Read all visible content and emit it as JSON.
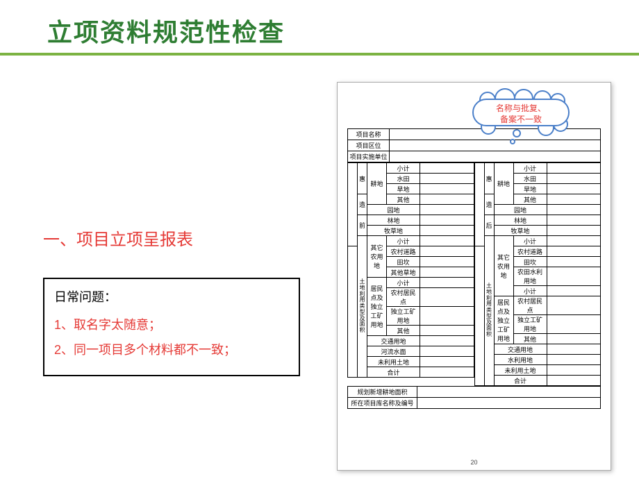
{
  "title": "立项资料规范性检查",
  "cloud_text_l1": "名称与批复、",
  "cloud_text_l2": "备案不一致",
  "section_heading": "一、项目立项呈报表",
  "issues": {
    "title": "日常问题：",
    "line1": "1、取名字太随意；",
    "line2": "2、同一项目多个材料都不一致；"
  },
  "form": {
    "hdr1": "项目名称",
    "hdr2": "项目区位",
    "hdr3": "项目实施单位",
    "side_top_l1": "惠",
    "side_top_l2": "造",
    "side_top_l3": "前",
    "side_top_r1": "惠",
    "side_top_r2": "造",
    "side_top_r3": "后",
    "side_lbl_l": "土地利用类型及面积",
    "side_lbl_r": "土地利用类型及面积",
    "gd": "耕地",
    "xj": "小计",
    "st": "水田",
    "hd": "旱地",
    "qt": "其他",
    "yd": "园地",
    "ld": "林地",
    "mcd": "牧草地",
    "qtnyd": "其它农用地",
    "ncdl": "农村道路",
    "tk": "田坎",
    "qtcd": "其他草地",
    "ntsl": "农田水利用地",
    "jmdgk": "居民点及独立工矿用地",
    "ncjmd": "农村居民点",
    "dlgkyd": "独立工矿用地",
    "jtyd": "交通用地",
    "hlsm": "河流水面",
    "slyd": "水利用地",
    "wlytd": "未利用土地",
    "hj": "合计",
    "footer1": "规划新增耕地面积",
    "footer2": "所在项目库名称及编号",
    "page_num": "20"
  },
  "colors": {
    "background": "#174a5e",
    "title_green": "#2e7d32",
    "accent_green": "#7cb342",
    "red": "#e53935",
    "cloud_border": "#4a7fc9"
  }
}
